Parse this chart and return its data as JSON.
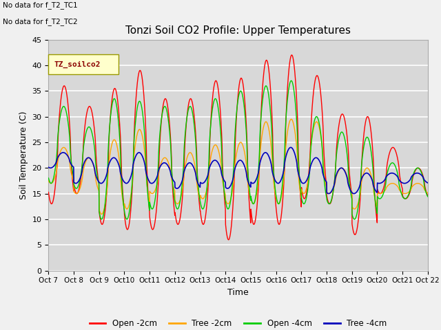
{
  "title": "Tonzi Soil CO2 Profile: Upper Temperatures",
  "xlabel": "Time",
  "ylabel": "Soil Temperature (C)",
  "ylim": [
    0,
    45
  ],
  "xlim": [
    0,
    15
  ],
  "plot_bg_color": "#d8d8d8",
  "fig_bg_color": "#f0f0f0",
  "nodata_text": [
    "No data for f_T2_TC1",
    "No data for f_T2_TC2"
  ],
  "legend_box_label": "TZ_soilco2",
  "xtick_labels": [
    "Oct 7",
    "Oct 8",
    "Oct 9",
    "Oct10",
    "Oct11",
    "Oct12",
    "Oct13",
    "Oct14",
    "Oct15",
    "Oct16",
    "Oct17",
    "Oct18",
    "Oct19",
    "Oct20",
    "Oct21",
    "Oct 22"
  ],
  "ytick_vals": [
    0,
    5,
    10,
    15,
    20,
    25,
    30,
    35,
    40,
    45
  ],
  "line_colors": {
    "open_2cm": "#ff0000",
    "tree_2cm": "#ffa500",
    "open_4cm": "#00cc00",
    "tree_4cm": "#0000bb"
  },
  "line_labels": [
    "Open -2cm",
    "Tree -2cm",
    "Open -4cm",
    "Tree -4cm"
  ],
  "open2_peaks": [
    36,
    32,
    35.5,
    39,
    33.5,
    33.5,
    37,
    37.5,
    41,
    42,
    38,
    30.5,
    30,
    24,
    20
  ],
  "open2_troughs": [
    13,
    15,
    9,
    8,
    8,
    9,
    9,
    6,
    9,
    9,
    14,
    13,
    7,
    15,
    14
  ],
  "tree2_peaks": [
    24,
    22,
    25.5,
    27.5,
    22,
    23,
    24.5,
    25,
    29,
    29.5,
    29,
    20,
    20,
    17,
    17
  ],
  "tree2_troughs": [
    17,
    15,
    11,
    12,
    15,
    13,
    14,
    13,
    13,
    13,
    15,
    15,
    12,
    15,
    15
  ],
  "open4_peaks": [
    32,
    28,
    33.5,
    33,
    32,
    32,
    33.5,
    35,
    36,
    37,
    30,
    27,
    26,
    21,
    20
  ],
  "open4_troughs": [
    17,
    16,
    10,
    10,
    12,
    12,
    12,
    12,
    13,
    13,
    13,
    13,
    10,
    14,
    14
  ],
  "tree4_peaks": [
    23,
    22,
    22,
    23,
    21,
    21,
    21.5,
    21.5,
    23,
    24,
    22,
    20,
    19,
    19,
    19
  ],
  "tree4_troughs": [
    20,
    17,
    17,
    17,
    17,
    16,
    17,
    16,
    17,
    17,
    17,
    15,
    15,
    17,
    17
  ]
}
